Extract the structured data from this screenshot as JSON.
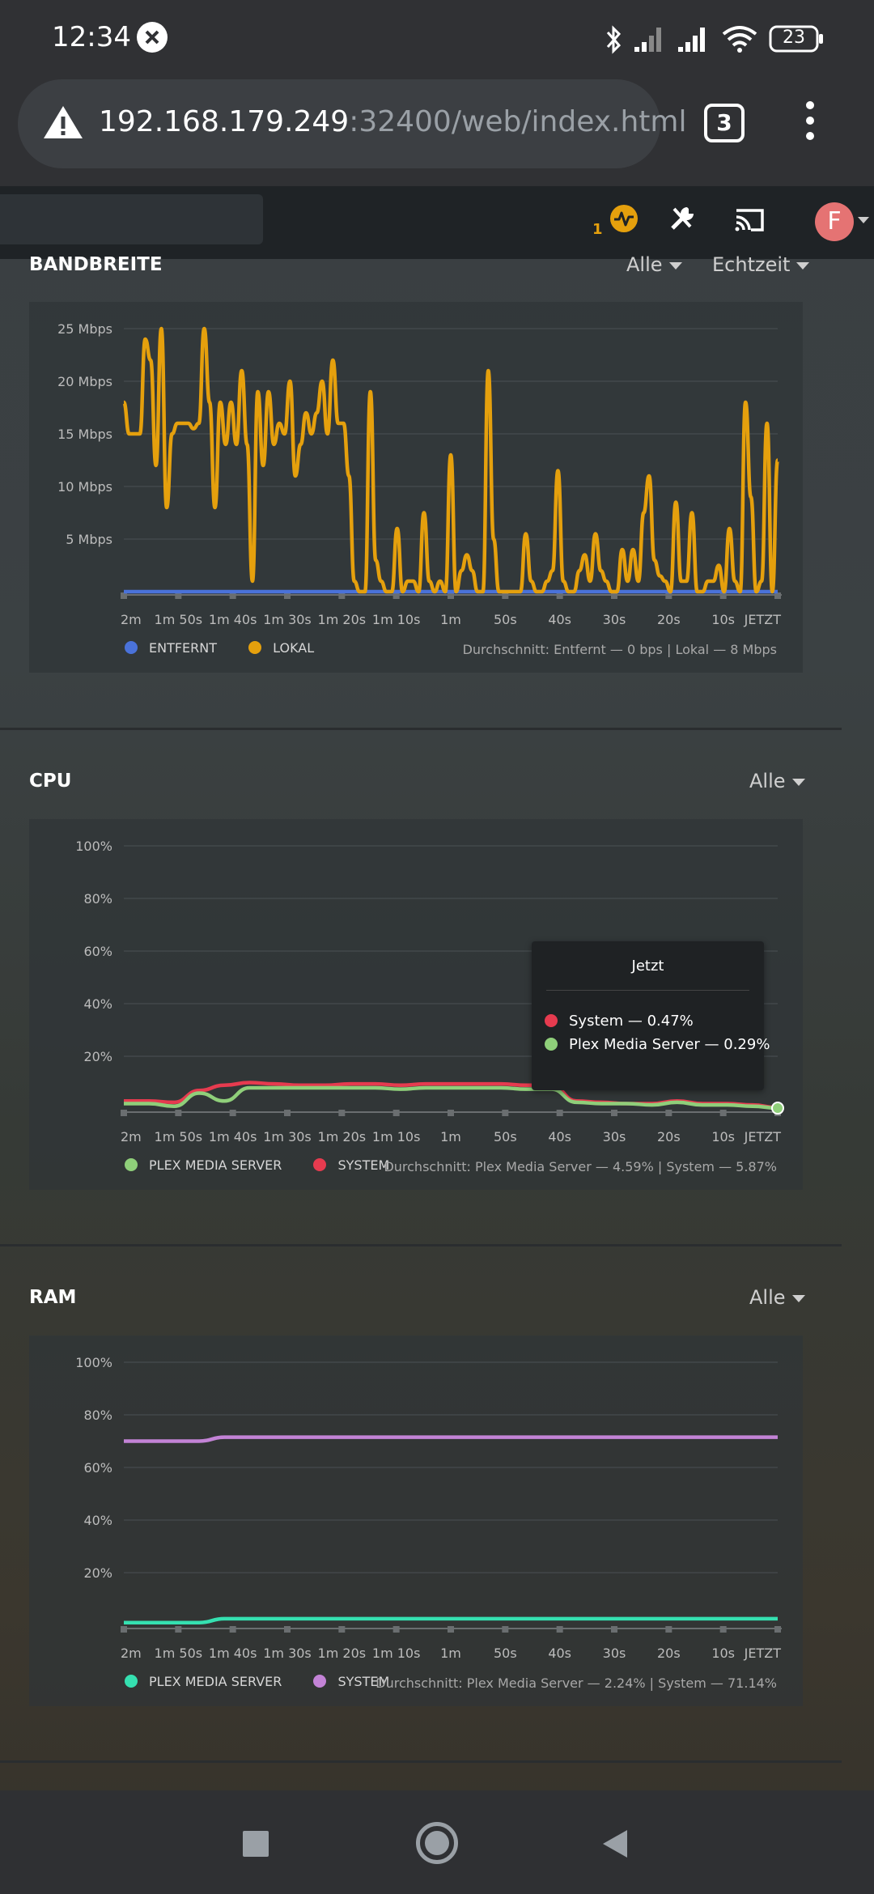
{
  "status_bar": {
    "time": "12:34",
    "battery": "23"
  },
  "browser": {
    "url_host": "192.168.179.249",
    "url_path": ":32400/web/index.html",
    "tab_count": "3"
  },
  "plex_bar": {
    "activity_count": "1",
    "avatar_letter": "F"
  },
  "bandwidth": {
    "title": "BANDBREITE",
    "filter": "Alle",
    "range": "Echtzeit",
    "legend": [
      {
        "label": "ENTFERNT",
        "color": "#4a72d9"
      },
      {
        "label": "LOKAL",
        "color": "#e5a00d"
      }
    ],
    "average": "Durchschnitt: Entfernt — 0 bps | Lokal — 8 Mbps"
  },
  "cpu": {
    "title": "CPU",
    "filter": "Alle",
    "legend": [
      {
        "label": "PLEX MEDIA SERVER",
        "color": "#8fcf7a"
      },
      {
        "label": "SYSTEM",
        "color": "#e63b4f"
      }
    ],
    "average": "Durchschnitt: Plex Media Server — 4.59% | System — 5.87%",
    "tooltip": {
      "title": "Jetzt",
      "rows": [
        {
          "label": "System — 0.47%",
          "color": "#e63b4f"
        },
        {
          "label": "Plex Media Server — 0.29%",
          "color": "#8fcf7a"
        }
      ]
    }
  },
  "ram": {
    "title": "RAM",
    "filter": "Alle",
    "legend": [
      {
        "label": "PLEX MEDIA SERVER",
        "color": "#35e0b0"
      },
      {
        "label": "SYSTEM",
        "color": "#c383d6"
      }
    ],
    "average": "Durchschnitt: Plex Media Server — 2.24% | System — 71.14%"
  },
  "chart_data": [
    {
      "type": "line",
      "title": "BANDBREITE",
      "x_ticks": [
        "2m",
        "1m 50s",
        "1m 40s",
        "1m 30s",
        "1m 20s",
        "1m 10s",
        "1m",
        "50s",
        "40s",
        "30s",
        "20s",
        "10s",
        "JETZT"
      ],
      "y_ticks": [
        "5 Mbps",
        "10 Mbps",
        "15 Mbps",
        "20 Mbps",
        "25 Mbps"
      ],
      "ylim": [
        0,
        25
      ],
      "grid": true,
      "legend_position": "bottom-left",
      "series": [
        {
          "name": "ENTFERNT",
          "color": "#4a72d9",
          "values": [
            0,
            0,
            0,
            0,
            0,
            0,
            0,
            0,
            0,
            0,
            0,
            0,
            0,
            0,
            0,
            0,
            0,
            0,
            0,
            0,
            0,
            0,
            0,
            0,
            0,
            0,
            0,
            0,
            0,
            0,
            0,
            0,
            0,
            0,
            0,
            0,
            0,
            0,
            0,
            0,
            0,
            0,
            0,
            0,
            0,
            0,
            0,
            0,
            0,
            0,
            0,
            0,
            0,
            0,
            0,
            0,
            0,
            0,
            0,
            0,
            0,
            0,
            0,
            0,
            0,
            0,
            0,
            0,
            0,
            0,
            0,
            0,
            0,
            0,
            0,
            0,
            0,
            0,
            0,
            0,
            0,
            0,
            0,
            0,
            0,
            0,
            0,
            0,
            0,
            0,
            0,
            0,
            0,
            0,
            0,
            0,
            0,
            0,
            0,
            0,
            0,
            0,
            0,
            0,
            0,
            0,
            0,
            0,
            0,
            0,
            0,
            0,
            0,
            0,
            0,
            0,
            0,
            0,
            0,
            0
          ]
        },
        {
          "name": "LOKAL",
          "color": "#e5a00d",
          "values": [
            18,
            15,
            15,
            15,
            24,
            22,
            12,
            25,
            8,
            15,
            16,
            16,
            16,
            15.5,
            16,
            25,
            18,
            8,
            18,
            14,
            18,
            14,
            21,
            14,
            1,
            19,
            12,
            19,
            14,
            16,
            15,
            20,
            11,
            14,
            17,
            15,
            17,
            20,
            15,
            22,
            16,
            16,
            11,
            1,
            0,
            0,
            19,
            3,
            1,
            0,
            0,
            6,
            0,
            1,
            1,
            0,
            7.5,
            1,
            0,
            1,
            0,
            13,
            0,
            2,
            3.5,
            2,
            0,
            0,
            21,
            5,
            0,
            0,
            0,
            0,
            0,
            5.5,
            1,
            0,
            0,
            1,
            2,
            11.5,
            1,
            0,
            0,
            2,
            3.5,
            1,
            5.5,
            2,
            1,
            0,
            0,
            4,
            1,
            4,
            1,
            7.5,
            11,
            3,
            1.5,
            1,
            0,
            8.5,
            1,
            1,
            7.5,
            0,
            0,
            1,
            1,
            2.5,
            0,
            6,
            1,
            0,
            18,
            9,
            0,
            1,
            16,
            0,
            12.5
          ]
        }
      ]
    },
    {
      "type": "line",
      "title": "CPU",
      "x_ticks": [
        "2m",
        "1m 50s",
        "1m 40s",
        "1m 30s",
        "1m 20s",
        "1m 10s",
        "1m",
        "50s",
        "40s",
        "30s",
        "20s",
        "10s",
        "JETZT"
      ],
      "y_ticks": [
        "20%",
        "40%",
        "60%",
        "80%",
        "100%"
      ],
      "ylim": [
        0,
        100
      ],
      "grid": true,
      "legend_position": "bottom-left",
      "series": [
        {
          "name": "SYSTEM",
          "color": "#e63b4f",
          "values": [
            3,
            3,
            2.5,
            7,
            9,
            10,
            9.5,
            9,
            9,
            9.5,
            9.5,
            9,
            9.5,
            9.5,
            9.5,
            9.5,
            9,
            9,
            3,
            2.5,
            2,
            2,
            3,
            2,
            2,
            1.5,
            0.47
          ]
        },
        {
          "name": "PLEX MEDIA SERVER",
          "color": "#8fcf7a",
          "values": [
            2,
            2,
            1,
            6,
            3,
            8,
            8,
            8,
            8,
            8,
            8,
            7.5,
            8,
            8,
            8,
            8,
            7.5,
            7.5,
            2.5,
            2,
            2,
            1.5,
            2.5,
            1.5,
            1.5,
            1,
            0.29
          ]
        }
      ]
    },
    {
      "type": "line",
      "title": "RAM",
      "x_ticks": [
        "2m",
        "1m 50s",
        "1m 40s",
        "1m 30s",
        "1m 20s",
        "1m 10s",
        "1m",
        "50s",
        "40s",
        "30s",
        "20s",
        "10s",
        "JETZT"
      ],
      "y_ticks": [
        "20%",
        "40%",
        "60%",
        "80%",
        "100%"
      ],
      "ylim": [
        0,
        100
      ],
      "grid": true,
      "legend_position": "bottom-left",
      "series": [
        {
          "name": "SYSTEM",
          "color": "#c383d6",
          "values": [
            70,
            70,
            70,
            70,
            71.5,
            71.5,
            71.5,
            71.5,
            71.5,
            71.5,
            71.5,
            71.5,
            71.5,
            71.5,
            71.5,
            71.5,
            71.5,
            71.5,
            71.5,
            71.5,
            71.5,
            71.5,
            71.5,
            71.5,
            71.5,
            71.5,
            71.5
          ]
        },
        {
          "name": "PLEX MEDIA SERVER",
          "color": "#35e0b0",
          "values": [
            1,
            1,
            1,
            1,
            2.5,
            2.5,
            2.5,
            2.5,
            2.5,
            2.5,
            2.5,
            2.5,
            2.5,
            2.5,
            2.5,
            2.5,
            2.5,
            2.5,
            2.5,
            2.5,
            2.5,
            2.5,
            2.5,
            2.5,
            2.5,
            2.5,
            2.5
          ]
        }
      ]
    }
  ]
}
